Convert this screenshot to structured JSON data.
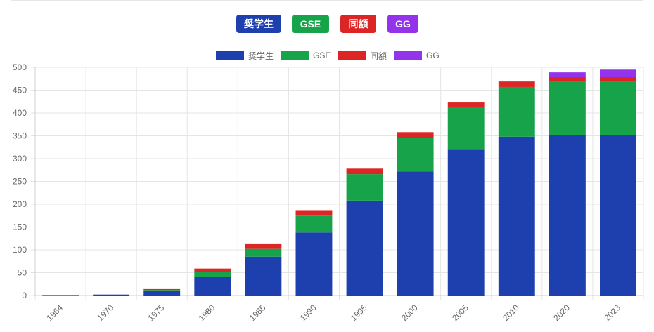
{
  "buttons": [
    {
      "label": "奨学生",
      "color": "#1e40af"
    },
    {
      "label": "GSE",
      "color": "#16a34a"
    },
    {
      "label": "同額",
      "color": "#dc2626"
    },
    {
      "label": "GG",
      "color": "#9333ea"
    }
  ],
  "chart_data": {
    "type": "bar",
    "stacked": true,
    "categories": [
      "1964",
      "1970",
      "1975",
      "1980",
      "1985",
      "1990",
      "1995",
      "2000",
      "2005",
      "2010",
      "2020",
      "2023"
    ],
    "series": [
      {
        "name": "奨学生",
        "color": "#1e40af",
        "values": [
          1,
          2,
          10,
          40,
          85,
          138,
          208,
          272,
          321,
          348,
          352,
          352
        ]
      },
      {
        "name": "GSE",
        "color": "#16a34a",
        "values": [
          0,
          0,
          2,
          12,
          17,
          37,
          58,
          74,
          90,
          109,
          116,
          116
        ]
      },
      {
        "name": "同額",
        "color": "#dc2626",
        "values": [
          0,
          0,
          2,
          7,
          12,
          12,
          12,
          12,
          12,
          12,
          12,
          12
        ]
      },
      {
        "name": "GG",
        "color": "#9333ea",
        "values": [
          0,
          0,
          0,
          0,
          0,
          0,
          0,
          0,
          0,
          0,
          9,
          15
        ]
      }
    ],
    "yticks": [
      0,
      50,
      100,
      150,
      200,
      250,
      300,
      350,
      400,
      450,
      500
    ],
    "ylim": [
      0,
      500
    ],
    "grid": true,
    "legend_position": "top"
  }
}
